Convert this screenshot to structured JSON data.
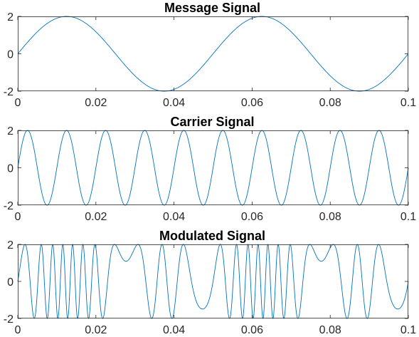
{
  "colors": {
    "line": "#0072BD",
    "axis": "#262626",
    "background": "#ffffff"
  },
  "chart_data": [
    {
      "type": "line",
      "title": "Message Signal",
      "xlabel": "",
      "ylabel": "",
      "xlim": [
        0,
        0.1
      ],
      "ylim": [
        -2,
        2
      ],
      "xticks": [
        0,
        0.02,
        0.04,
        0.06,
        0.08,
        0.1
      ],
      "xtick_labels": [
        "0",
        "0.02",
        "0.04",
        "0.06",
        "0.08",
        "0.1"
      ],
      "yticks": [
        -2,
        0,
        2
      ],
      "ytick_labels": [
        "-2",
        "0",
        "2"
      ],
      "grid": false,
      "series": [
        {
          "amplitude": 2,
          "frequency_hz": 20,
          "function": "sine",
          "x": [
            0,
            0.1
          ]
        }
      ]
    },
    {
      "type": "line",
      "title": "Carrier Signal",
      "xlabel": "",
      "ylabel": "",
      "xlim": [
        0,
        0.1
      ],
      "ylim": [
        -2,
        2
      ],
      "xticks": [
        0,
        0.02,
        0.04,
        0.06,
        0.08,
        0.1
      ],
      "xtick_labels": [
        "0",
        "0.02",
        "0.04",
        "0.06",
        "0.08",
        "0.1"
      ],
      "yticks": [
        -2,
        0,
        2
      ],
      "ytick_labels": [
        "-2",
        "0",
        "2"
      ],
      "grid": false,
      "series": [
        {
          "amplitude": 2,
          "frequency_hz": 100,
          "function": "sine",
          "x": [
            0,
            0.1
          ]
        }
      ]
    },
    {
      "type": "line",
      "title": "Modulated Signal",
      "xlabel": "",
      "ylabel": "",
      "xlim": [
        0,
        0.1
      ],
      "ylim": [
        -2,
        2
      ],
      "xticks": [
        0,
        0.02,
        0.04,
        0.06,
        0.08,
        0.1
      ],
      "xtick_labels": [
        "0",
        "0.02",
        "0.04",
        "0.06",
        "0.08",
        "0.1"
      ],
      "yticks": [
        -2,
        0,
        2
      ],
      "ytick_labels": [
        "-2",
        "0",
        "2"
      ],
      "grid": false,
      "series": [
        {
          "amplitude": 2,
          "carrier_frequency_hz": 100,
          "message_frequency_hz": 20,
          "message_amplitude": 2,
          "frequency_deviation_hz_per_unit": 150,
          "function": "fm",
          "x": [
            0,
            0.1
          ]
        }
      ]
    }
  ]
}
